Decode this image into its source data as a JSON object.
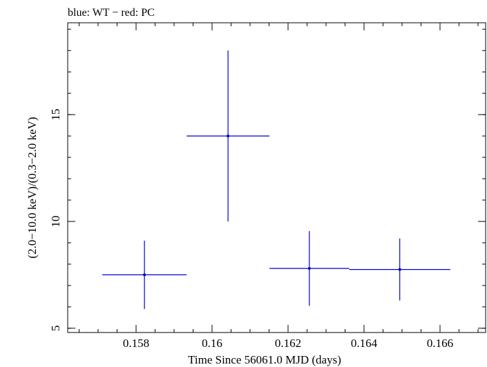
{
  "chart_data": {
    "type": "scatter",
    "title": "blue: WT − red: PC",
    "xlabel": "Time Since 56061.0 MJD (days)",
    "ylabel": "(2.0−10.0 keV)/(0.3−2.0 keV)",
    "xlim": [
      0.1562,
      0.1672
    ],
    "ylim": [
      4.8,
      19.3
    ],
    "x_ticks": [
      {
        "value": 0.158,
        "label": "0.158"
      },
      {
        "value": 0.16,
        "label": "0.16"
      },
      {
        "value": 0.162,
        "label": "0.162"
      },
      {
        "value": 0.164,
        "label": "0.164"
      },
      {
        "value": 0.166,
        "label": "0.166"
      }
    ],
    "x_minor_step": 0.0005,
    "y_ticks": [
      {
        "value": 5,
        "label": "5"
      },
      {
        "value": 10,
        "label": "10"
      },
      {
        "value": 15,
        "label": "15"
      }
    ],
    "y_minor_step": 1,
    "series": [
      {
        "name": "WT",
        "color": "#0000cc",
        "points": [
          {
            "x": 0.15822,
            "y": 7.5,
            "xerr_lo": 0.00111,
            "xerr_hi": 0.00111,
            "yerr_lo": 1.6,
            "yerr_hi": 1.6
          },
          {
            "x": 0.16042,
            "y": 14.0,
            "xerr_lo": 0.00109,
            "xerr_hi": 0.00109,
            "yerr_lo": 4.0,
            "yerr_hi": 4.0
          },
          {
            "x": 0.16256,
            "y": 7.8,
            "xerr_lo": 0.00105,
            "xerr_hi": 0.00105,
            "yerr_lo": 1.75,
            "yerr_hi": 1.75
          },
          {
            "x": 0.16494,
            "y": 7.75,
            "xerr_lo": 0.00133,
            "xerr_hi": 0.00133,
            "yerr_lo": 1.45,
            "yerr_hi": 1.45
          }
        ]
      }
    ]
  }
}
